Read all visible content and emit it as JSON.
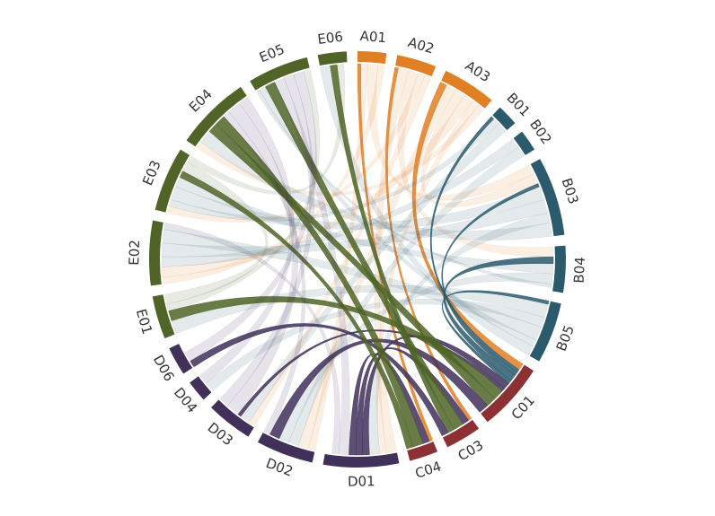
{
  "chart_data": {
    "type": "chord",
    "categories": [
      "A01",
      "A02",
      "A03",
      "B01",
      "B02",
      "B03",
      "B04",
      "B05",
      "C01",
      "C03",
      "C04",
      "D01",
      "D02",
      "D03",
      "D04",
      "D06",
      "E01",
      "E02",
      "E03",
      "E04",
      "E05",
      "E06"
    ],
    "values": [
      8,
      11,
      15,
      6,
      6,
      22,
      13,
      17,
      19,
      10,
      8,
      21,
      16,
      13,
      6,
      8,
      12,
      18,
      18,
      21,
      17,
      8
    ],
    "colors": [
      "#e07f24",
      "#e07f24",
      "#e07f24",
      "#2b5a6d",
      "#2b5a6d",
      "#2b5a6d",
      "#2b5a6d",
      "#2b5a6d",
      "#8c3034",
      "#8c3034",
      "#8c3034",
      "#40305a",
      "#40305a",
      "#40305a",
      "#40305a",
      "#40305a",
      "#4f6426",
      "#4f6426",
      "#4f6426",
      "#4f6426",
      "#4f6426",
      "#4f6426"
    ],
    "highlight": [
      "C01",
      "C03",
      "C04"
    ],
    "links": [
      {
        "source": "A01",
        "target": "C04",
        "value": 1
      },
      {
        "source": "A01",
        "target": "D02",
        "value": 2
      },
      {
        "source": "A01",
        "target": "B03",
        "value": 3
      },
      {
        "source": "A01",
        "target": "E02",
        "value": 2
      },
      {
        "source": "A02",
        "target": "C03",
        "value": 1
      },
      {
        "source": "A02",
        "target": "D01",
        "value": 3
      },
      {
        "source": "A02",
        "target": "B04",
        "value": 3
      },
      {
        "source": "A02",
        "target": "E03",
        "value": 2
      },
      {
        "source": "A02",
        "target": "D03",
        "value": 2
      },
      {
        "source": "A03",
        "target": "C01",
        "value": 2
      },
      {
        "source": "A03",
        "target": "D02",
        "value": 3
      },
      {
        "source": "A03",
        "target": "B03",
        "value": 3
      },
      {
        "source": "A03",
        "target": "E02",
        "value": 3
      },
      {
        "source": "A03",
        "target": "D01",
        "value": 2
      },
      {
        "source": "A03",
        "target": "E04",
        "value": 2
      },
      {
        "source": "B01",
        "target": "C01",
        "value": 1
      },
      {
        "source": "B01",
        "target": "E03",
        "value": 2
      },
      {
        "source": "B01",
        "target": "D03",
        "value": 3
      },
      {
        "source": "B02",
        "target": "E02",
        "value": 3
      },
      {
        "source": "B02",
        "target": "D02",
        "value": 3
      },
      {
        "source": "B03",
        "target": "C01",
        "value": 1
      },
      {
        "source": "B03",
        "target": "E03",
        "value": 4
      },
      {
        "source": "B03",
        "target": "E02",
        "value": 4
      },
      {
        "source": "B03",
        "target": "D01",
        "value": 3
      },
      {
        "source": "B03",
        "target": "E04",
        "value": 4
      },
      {
        "source": "B04",
        "target": "C01",
        "value": 2
      },
      {
        "source": "B04",
        "target": "E03",
        "value": 3
      },
      {
        "source": "B04",
        "target": "D02",
        "value": 3
      },
      {
        "source": "B04",
        "target": "E05",
        "value": 1
      },
      {
        "source": "B05",
        "target": "C01",
        "value": 1
      },
      {
        "source": "B05",
        "target": "E01",
        "value": 4
      },
      {
        "source": "B05",
        "target": "D04",
        "value": 3
      },
      {
        "source": "B05",
        "target": "E02",
        "value": 4
      },
      {
        "source": "B05",
        "target": "E05",
        "value": 2
      },
      {
        "source": "B05",
        "target": "E06",
        "value": 3
      },
      {
        "source": "D01",
        "target": "C01",
        "value": 2
      },
      {
        "source": "D03",
        "target": "C01",
        "value": 1
      },
      {
        "source": "E01",
        "target": "C01",
        "value": 3
      },
      {
        "source": "E04",
        "target": "C01",
        "value": 3
      },
      {
        "source": "D02",
        "target": "C01",
        "value": 3
      },
      {
        "source": "D01",
        "target": "C03",
        "value": 2
      },
      {
        "source": "E05",
        "target": "C03",
        "value": 3
      },
      {
        "source": "E06",
        "target": "C03",
        "value": 2
      },
      {
        "source": "D06",
        "target": "C03",
        "value": 2
      },
      {
        "source": "D01",
        "target": "C04",
        "value": 2
      },
      {
        "source": "E04",
        "target": "C04",
        "value": 3
      },
      {
        "source": "E03",
        "target": "C04",
        "value": 2
      },
      {
        "source": "D01",
        "target": "E05",
        "value": 3
      },
      {
        "source": "D01",
        "target": "E02",
        "value": 2
      },
      {
        "source": "D02",
        "target": "E04",
        "value": 2
      },
      {
        "source": "D03",
        "target": "E04",
        "value": 4
      },
      {
        "source": "D03",
        "target": "E05",
        "value": 3
      },
      {
        "source": "D04",
        "target": "E04",
        "value": 3
      },
      {
        "source": "D06",
        "target": "E05",
        "value": 3
      },
      {
        "source": "E01",
        "target": "E05",
        "value": 2
      },
      {
        "source": "E01",
        "target": "E03",
        "value": 3
      },
      {
        "source": "E03",
        "target": "E06",
        "value": 2
      }
    ]
  }
}
